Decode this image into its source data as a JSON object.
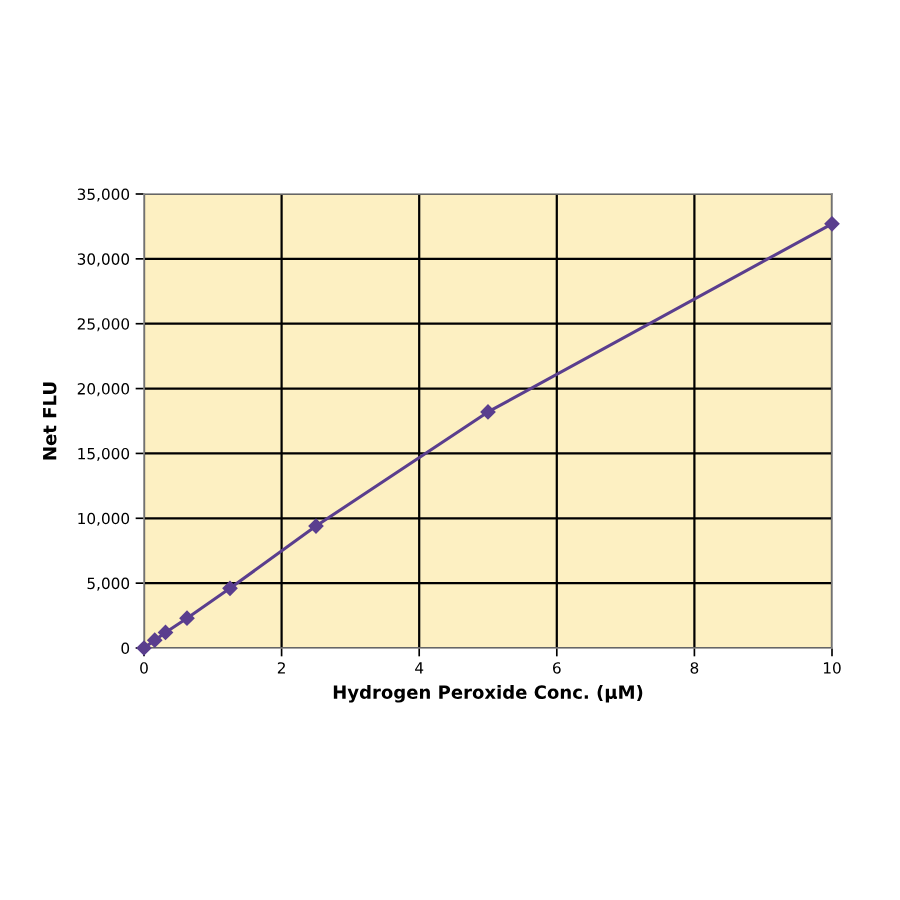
{
  "chart_data": {
    "type": "line",
    "xlabel": "Hydrogen Peroxide Conc. (µM)",
    "ylabel": "Net FLU",
    "x": [
      0,
      0.156,
      0.3125,
      0.625,
      1.25,
      2.5,
      5,
      10
    ],
    "series": [
      {
        "color": "#5a3e8e",
        "values": [
          0,
          600,
          1200,
          2300,
          4600,
          9400,
          18200,
          32700
        ]
      }
    ],
    "xlim": [
      0,
      10
    ],
    "xticks": [
      0,
      2,
      4,
      6,
      8,
      10
    ],
    "ylim": [
      0,
      35000
    ],
    "yticks": [
      {
        "value": 0,
        "label": "0"
      },
      {
        "value": 5000,
        "label": "5,000"
      },
      {
        "value": 10000,
        "label": "10,000"
      },
      {
        "value": 15000,
        "label": "15,000"
      },
      {
        "value": 20000,
        "label": "20,000"
      },
      {
        "value": 25000,
        "label": "25,000"
      },
      {
        "value": 30000,
        "label": "30,000"
      },
      {
        "value": 35000,
        "label": "35,000"
      }
    ],
    "grid": true,
    "marker": "diamond",
    "line_style": "solid"
  }
}
